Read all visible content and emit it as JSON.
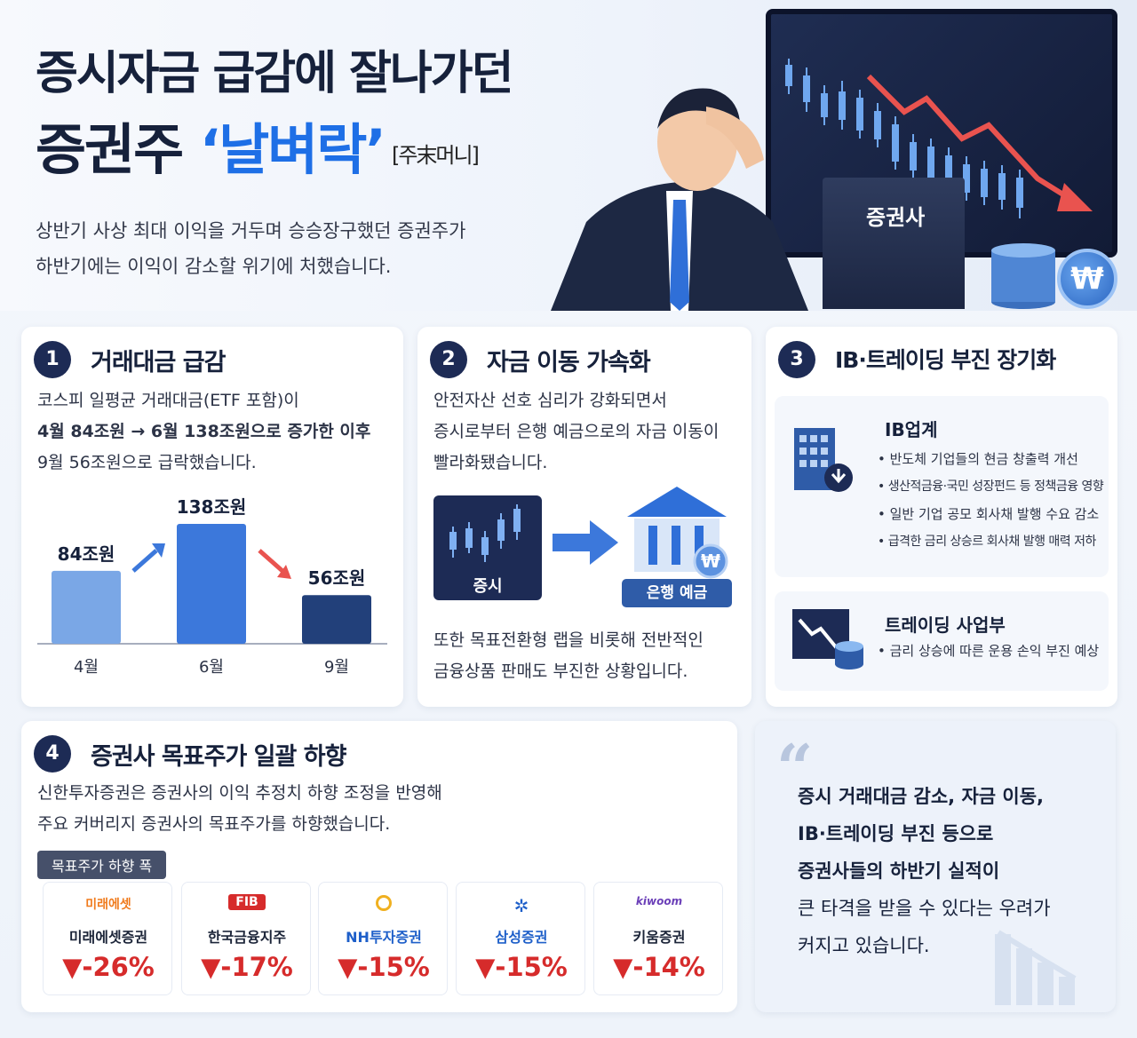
{
  "header": {
    "title_line1": "증시자금 급감에 잘나가던",
    "title_line2_pre": "증권주 ",
    "title_line2_highlight": "‘날벼락’",
    "title_source": "[주末머니]",
    "lead_line1": "상반기 사상 최대 이익을 거두며 승승장구했던 증권주가",
    "lead_line2": "하반기에는 이익이 감소할 위기에 처했습니다.",
    "building_label": "증권사",
    "won_symbol": "₩"
  },
  "section1": {
    "number": "1",
    "title": "거래대금 급감",
    "text_line1": "코스피 일평균 거래대금(ETF 포함)이",
    "text_line2": "4월 84조원 → 6월 138조원으로 증가한 이후",
    "text_line3": "9월 56조원으로 급락했습니다."
  },
  "chart_data": {
    "type": "bar",
    "categories": [
      "4월",
      "6월",
      "9월"
    ],
    "values": [
      84,
      138,
      56
    ],
    "value_labels": [
      "84조원",
      "138조원",
      "56조원"
    ],
    "colors": [
      "#7aa7e6",
      "#3c78db",
      "#22407a"
    ]
  },
  "section2": {
    "number": "2",
    "title": "자금 이동 가속화",
    "text_line1": "안전자산 선호 심리가 강화되면서",
    "text_line2": "증시로부터 은행 예금으로의 자금 이동이",
    "text_line3": "빨라화됐습니다.",
    "from_label": "증시",
    "to_label": "은행 예금",
    "won_symbol": "₩",
    "text2_line1": "또한 목표전환형 랩을 비롯해 전반적인",
    "text2_line2": "금융상품 판매도 부진한 상황입니다."
  },
  "section3": {
    "number": "3",
    "title": "IB·트레이딩 부진 장기화",
    "ib_title": "IB업계",
    "ib_items": [
      "반도체 기업들의 현금 창출력 개선",
      "생산적금융·국민 성장펀드 등 정책금융 영향",
      "일반 기업 공모 회사채 발행 수요 감소",
      "급격한 금리 상승르 회사채 발행 매력 저하"
    ],
    "trading_title": "트레이딩 사업부",
    "trading_items": [
      "금리 상승에 따른 운용 손익 부진 예상"
    ]
  },
  "section4": {
    "number": "4",
    "title": "증권사 목표주가 일괄 하향",
    "text_line1": "신한투자증권은 증권사의 이익 추정치 하향 조정을 반영해",
    "text_line2": "주요 커버리지 증권사의 목표주가를 하향했습니다.",
    "tag": "목표주가 하향 폭",
    "firms": [
      {
        "logo": "미래에셋",
        "name": "미래에셋증권",
        "pct": "▼-26%",
        "color": "#f07b1d"
      },
      {
        "logo": "FIB",
        "name": "한국금융지주",
        "pct": "▼-17%",
        "color": "#d62b2b"
      },
      {
        "logo": "NH투자증권",
        "name": "NH투자증권",
        "pct": "▼-15%",
        "color": "#1e5fc9"
      },
      {
        "logo": "삼성증권",
        "name": "삼성증권",
        "pct": "▼-15%",
        "color": "#1e5fc9"
      },
      {
        "logo": "kiwoom",
        "name": "키움증권",
        "pct": "▼-14%",
        "color": "#6b3fb8"
      }
    ]
  },
  "quote": {
    "mark": "“",
    "line1": "증시 거래대금 감소, 자금 이동,",
    "line2": "IB·트레이딩 부진 등으로",
    "line3": "증권사들의 하반기 실적이",
    "line4": "큰 타격을 받을 수 있다는 우려가",
    "line5": "커지고 있습니다."
  }
}
